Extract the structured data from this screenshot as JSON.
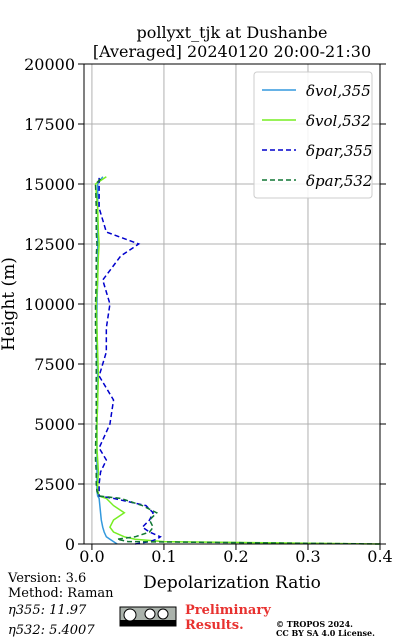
{
  "chart_data": {
    "type": "line",
    "title": "pollyxt_tjk at Dushanbe",
    "subtitle": "[Averaged] 20240120 20:00-21:30",
    "x_label": "Depolarization Ratio",
    "y_label": "Height (m)",
    "y": [
      0,
      100,
      200,
      300,
      500,
      700,
      1000,
      1300,
      1600,
      1900,
      2000,
      2200,
      2500,
      3000,
      3500,
      4000,
      5000,
      6000,
      7000,
      8000,
      9000,
      10000,
      11000,
      12000,
      12500,
      13000,
      14000,
      15000,
      15300
    ],
    "series": [
      {
        "name": "δvol,355",
        "color": "#3399dd",
        "linestyle": "solid",
        "values": [
          0.035,
          0.03,
          0.025,
          0.02,
          0.017,
          0.015,
          0.013,
          0.012,
          0.011,
          0.01,
          0.008,
          0.007,
          0.007,
          0.007,
          0.007,
          0.007,
          0.007,
          0.008,
          0.008,
          0.007,
          0.007,
          0.007,
          0.008,
          0.008,
          0.008,
          0.008,
          0.008,
          0.008,
          0.015
        ]
      },
      {
        "name": "δvol,532",
        "color": "#77ee22",
        "linestyle": "solid",
        "values": [
          0.4,
          0.1,
          0.06,
          0.045,
          0.03,
          0.025,
          0.03,
          0.045,
          0.03,
          0.02,
          0.01,
          0.008,
          0.008,
          0.009,
          0.008,
          0.007,
          0.007,
          0.008,
          0.009,
          0.008,
          0.007,
          0.006,
          0.008,
          0.009,
          0.01,
          0.009,
          0.008,
          0.005,
          0.02
        ]
      },
      {
        "name": "δpar,355",
        "color": "#0000cc",
        "linestyle": "dashed",
        "values": [
          0.06,
          0.08,
          0.09,
          0.095,
          0.08,
          0.07,
          0.08,
          0.085,
          0.075,
          0.03,
          0.01,
          0.01,
          0.01,
          0.012,
          0.02,
          0.01,
          0.025,
          0.03,
          0.01,
          0.02,
          0.02,
          0.025,
          0.015,
          0.04,
          0.065,
          0.02,
          0.01,
          0.01,
          0.01
        ]
      },
      {
        "name": "δpar,532",
        "color": "#117733",
        "linestyle": "dashed",
        "values": [
          0.4,
          0.05,
          0.035,
          0.06,
          0.08,
          0.085,
          0.08,
          0.09,
          0.07,
          0.04,
          0.01,
          0.007,
          0.006,
          0.006,
          0.005,
          0.005,
          0.006,
          0.006,
          0.006,
          0.006,
          0.005,
          0.005,
          0.006,
          0.006,
          0.007,
          0.006,
          0.006,
          0.005,
          0.015
        ]
      }
    ],
    "xlim": [
      -0.011,
      0.4
    ],
    "ylim": [
      0,
      20000
    ],
    "xticks": [
      {
        "value": 0,
        "label": "0.0"
      },
      0.1,
      0.2,
      0.3,
      0.4
    ],
    "yticks": [
      0,
      2500,
      5000,
      7500,
      10000,
      12500,
      15000,
      17500,
      20000
    ],
    "grid": true,
    "legend": "upper right"
  },
  "footer": {
    "version": "Version: 3.6",
    "method": "Method: Raman",
    "eta355": "η355:  11.97",
    "eta532": "η532: 5.4007",
    "preliminary": "Preliminary",
    "results": "Results.",
    "copyright": "© TROPOS 2024.",
    "license": "CC BY SA 4.0 License."
  }
}
